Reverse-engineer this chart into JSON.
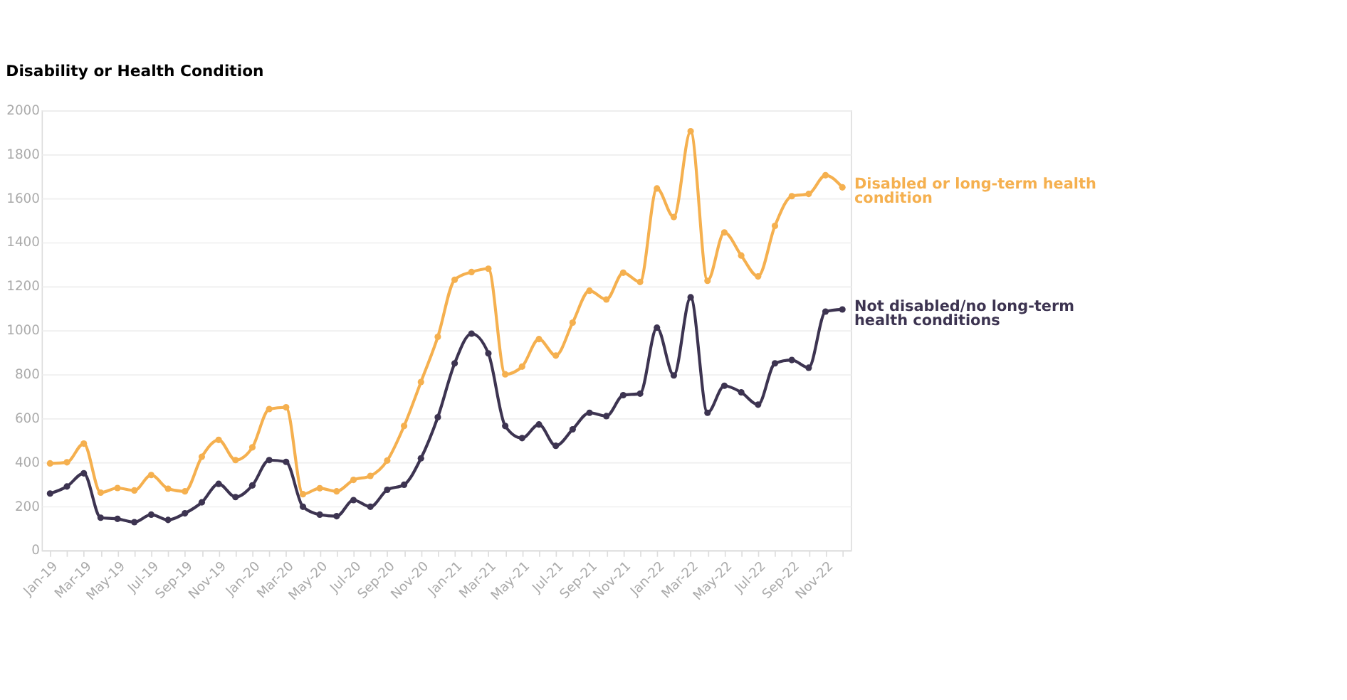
{
  "chart_data": {
    "type": "line",
    "title": "Disability or Health Condition",
    "categories": [
      "Jan-19",
      null,
      "Mar-19",
      null,
      "May-19",
      null,
      "Jul-19",
      null,
      "Sep-19",
      null,
      "Nov-19",
      null,
      "Jan-20",
      null,
      "Mar-20",
      null,
      "May-20",
      null,
      "Jul-20",
      null,
      "Sep-20",
      null,
      "Nov-20",
      null,
      "Jan-21",
      null,
      "Mar-21",
      null,
      "May-21",
      null,
      "Jul-21",
      null,
      "Sep-21",
      null,
      "Nov-21",
      null,
      "Jan-22",
      null,
      "Mar-22",
      null,
      "May-22",
      null,
      "Jul-22",
      null,
      "Sep-22",
      null,
      "Nov-22",
      null
    ],
    "series": [
      {
        "name": "Disabled or long-term health condition",
        "color": "#f5b04f",
        "values": [
          395,
          400,
          485,
          262,
          283,
          272,
          342,
          280,
          268,
          425,
          502,
          410,
          468,
          642,
          650,
          255,
          282,
          268,
          320,
          338,
          408,
          565,
          765,
          970,
          1230,
          1265,
          1280,
          800,
          835,
          960,
          885,
          1035,
          1180,
          1140,
          1262,
          1220,
          1645,
          1515,
          1905,
          1225,
          1445,
          1340,
          1245,
          1475,
          1610,
          1620,
          1705,
          1650
        ]
      },
      {
        "name": "Not disabled/no long-term health conditions",
        "color": "#3d3451",
        "values": [
          258,
          290,
          350,
          148,
          143,
          128,
          162,
          138,
          168,
          218,
          302,
          242,
          295,
          410,
          402,
          198,
          162,
          155,
          228,
          198,
          275,
          298,
          418,
          605,
          850,
          985,
          895,
          565,
          510,
          572,
          475,
          550,
          625,
          610,
          705,
          712,
          1012,
          795,
          1150,
          625,
          748,
          718,
          662,
          850,
          865,
          830,
          1085,
          1095
        ]
      }
    ],
    "ylim": [
      0,
      2000
    ],
    "yticks": [
      0,
      200,
      400,
      600,
      800,
      1000,
      1200,
      1400,
      1600,
      1800,
      2000
    ],
    "grid": "y",
    "legend": false,
    "marker": "circle",
    "line_style": "solid"
  }
}
